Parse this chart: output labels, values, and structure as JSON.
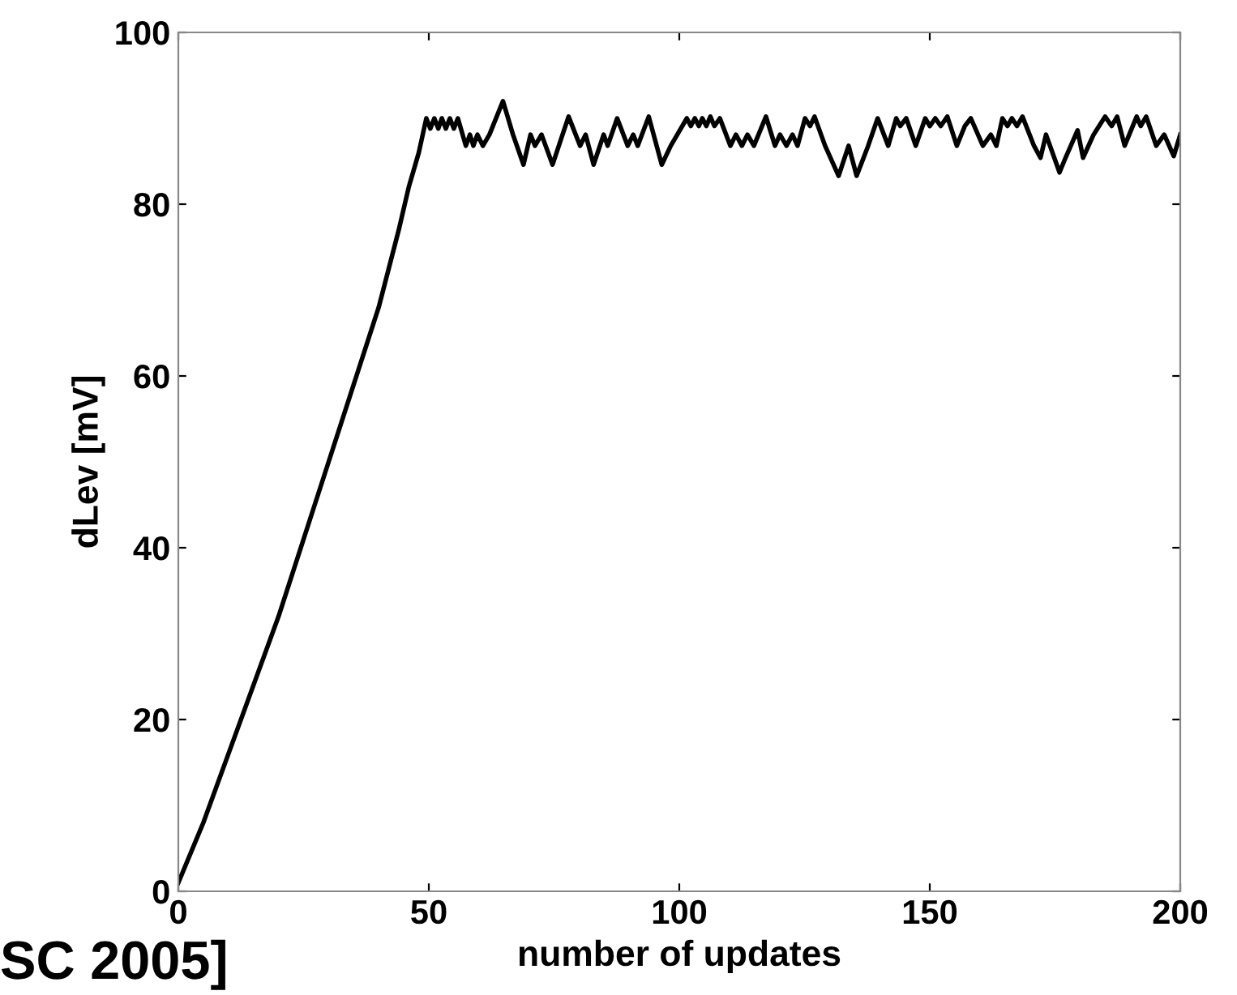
{
  "chart_data": {
    "type": "line",
    "xlabel": "number of updates",
    "ylabel": "dLev [mV]",
    "xlim": [
      0,
      200
    ],
    "ylim": [
      0,
      100
    ],
    "xticks": [
      0,
      50,
      100,
      150,
      200
    ],
    "yticks": [
      0,
      20,
      40,
      60,
      80,
      100
    ],
    "grid": false,
    "annotations": [
      "SC 2005]"
    ],
    "series": [
      {
        "color": "#000000",
        "x": [
          0,
          5,
          10,
          20,
          30,
          40,
          44,
          46,
          48,
          49.5,
          50.3,
          51.1,
          51.9,
          52.6,
          53.4,
          54.2,
          55.0,
          55.8,
          57.4,
          58.2,
          58.9,
          59.7,
          60.8,
          62.1,
          64.8,
          66.8,
          68.9,
          70.3,
          71.2,
          72.5,
          74.7,
          77.9,
          80.2,
          81.3,
          82.9,
          84.9,
          85.7,
          87.6,
          89.7,
          90.8,
          91.7,
          93.9,
          96.5,
          98.3,
          99.6,
          101.5,
          102.3,
          103.1,
          103.9,
          104.6,
          105.4,
          106.2,
          107.0,
          108.1,
          110.2,
          111.3,
          112.5,
          113.6,
          114.9,
          117.3,
          119.1,
          120.1,
          121.4,
          122.6,
          123.6,
          125.1,
          126.1,
          127.0,
          129.1,
          131.8,
          133.8,
          135.4,
          137.7,
          139.6,
          141.7,
          143.3,
          144.1,
          145.3,
          147.2,
          149.1,
          150.0,
          151.1,
          152.2,
          153.5,
          155.4,
          157.0,
          158.2,
          160.6,
          162.2,
          163.3,
          164.5,
          165.5,
          166.4,
          167.4,
          168.5,
          170.8,
          172.1,
          173.2,
          175.9,
          177.1,
          179.5,
          180.6,
          182.7,
          183.8,
          185.0,
          186.3,
          187.4,
          188.9,
          191.3,
          192.1,
          193.2,
          195.2,
          196.8,
          198.7,
          200
        ],
        "values": [
          1,
          8,
          16,
          32,
          50,
          68,
          77,
          82,
          86,
          90,
          88.8,
          90,
          88.8,
          90,
          88.8,
          90,
          88.8,
          90,
          86.8,
          88.1,
          86.8,
          88.1,
          86.8,
          88.1,
          92.0,
          88.1,
          84.6,
          88.1,
          86.8,
          88.1,
          84.6,
          90.2,
          86.8,
          88.1,
          84.6,
          88.1,
          86.8,
          90,
          86.8,
          88.1,
          86.8,
          90.2,
          84.6,
          86.8,
          88.1,
          90,
          89.1,
          90,
          89.1,
          90,
          89.1,
          90.2,
          89.1,
          90,
          86.8,
          88.1,
          86.8,
          88.1,
          86.8,
          90.2,
          86.8,
          88.1,
          86.8,
          88.1,
          86.8,
          90,
          89.1,
          90.2,
          86.8,
          83.3,
          86.8,
          83.3,
          86.8,
          90,
          86.8,
          90,
          89.1,
          90,
          86.8,
          90,
          89.1,
          90,
          89.1,
          90.2,
          86.8,
          89.1,
          90,
          86.8,
          88.1,
          86.8,
          90,
          89.1,
          90,
          89.1,
          90.2,
          86.8,
          85.4,
          88.1,
          83.7,
          85.4,
          88.6,
          85.4,
          88.1,
          89.1,
          90.2,
          89.1,
          90.2,
          86.8,
          90.2,
          89.1,
          90.2,
          86.8,
          88.1,
          85.6,
          88.1
        ]
      }
    ]
  }
}
